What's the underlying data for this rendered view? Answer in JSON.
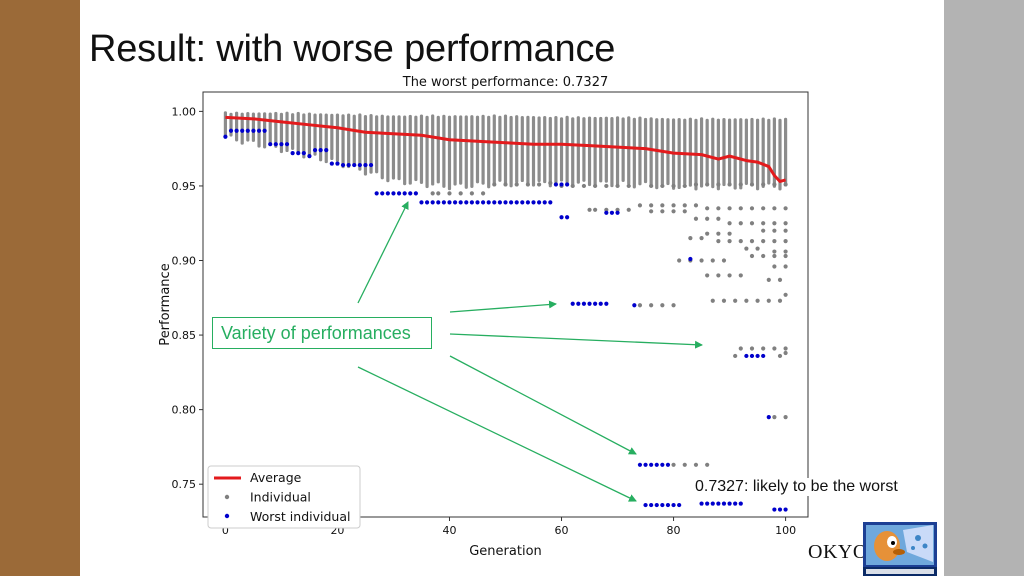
{
  "slide": {
    "title": "Result: with worse performance",
    "callout": "Variety of performances",
    "note": "0.7327: likely to be the worst",
    "footer_text": "OKYO"
  },
  "colors": {
    "left_bar": "#9b6a38",
    "right_bar": "#b3b3b3",
    "average": "#e31a1c",
    "individual": "#808080",
    "worst": "#0000cc",
    "annotation": "#27ae60"
  },
  "chart_data": {
    "type": "scatter",
    "title": "The worst performance: 0.7327",
    "xlabel": "Generation",
    "ylabel": "Performance",
    "xlim": [
      -4,
      104
    ],
    "ylim": [
      0.728,
      1.013
    ],
    "xticks": [
      "0",
      "20",
      "40",
      "60",
      "80",
      "100"
    ],
    "yticks": [
      "0.75",
      "0.80",
      "0.85",
      "0.90",
      "0.95",
      "1.00"
    ],
    "grid": false,
    "legend_position": "lower-left",
    "legend": [
      "Average",
      "Individual",
      "Worst individual"
    ],
    "series": [
      {
        "name": "Average",
        "kind": "line",
        "points": [
          [
            0,
            0.996
          ],
          [
            5,
            0.995
          ],
          [
            10,
            0.993
          ],
          [
            15,
            0.991
          ],
          [
            20,
            0.989
          ],
          [
            25,
            0.986
          ],
          [
            30,
            0.985
          ],
          [
            35,
            0.984
          ],
          [
            40,
            0.981
          ],
          [
            45,
            0.98
          ],
          [
            50,
            0.979
          ],
          [
            55,
            0.978
          ],
          [
            60,
            0.978
          ],
          [
            65,
            0.977
          ],
          [
            70,
            0.976
          ],
          [
            75,
            0.975
          ],
          [
            80,
            0.972
          ],
          [
            85,
            0.971
          ],
          [
            88,
            0.968
          ],
          [
            90,
            0.97
          ],
          [
            93,
            0.967
          ],
          [
            95,
            0.966
          ],
          [
            97,
            0.963
          ],
          [
            98,
            0.957
          ],
          [
            99,
            0.953
          ],
          [
            100,
            0.954
          ]
        ]
      },
      {
        "name": "Individual",
        "kind": "band",
        "points": [
          [
            0,
            0.983,
            0.999
          ],
          [
            10,
            0.975,
            0.999
          ],
          [
            20,
            0.966,
            0.998
          ],
          [
            30,
            0.954,
            0.997
          ],
          [
            40,
            0.95,
            0.997
          ],
          [
            50,
            0.952,
            0.997
          ],
          [
            60,
            0.952,
            0.996
          ],
          [
            70,
            0.952,
            0.996
          ],
          [
            80,
            0.95,
            0.995
          ],
          [
            90,
            0.95,
            0.995
          ],
          [
            100,
            0.95,
            0.995
          ]
        ]
      },
      {
        "name": "Individual",
        "kind": "scatter",
        "points": [
          [
            37,
            0.945
          ],
          [
            38,
            0.945
          ],
          [
            40,
            0.945
          ],
          [
            42,
            0.945
          ],
          [
            44,
            0.945
          ],
          [
            46,
            0.945
          ],
          [
            48,
            0.951
          ],
          [
            50,
            0.951
          ],
          [
            52,
            0.951
          ],
          [
            54,
            0.951
          ],
          [
            56,
            0.951
          ],
          [
            58,
            0.952
          ],
          [
            60,
            0.95
          ],
          [
            62,
            0.95
          ],
          [
            64,
            0.95
          ],
          [
            66,
            0.95
          ],
          [
            68,
            0.95
          ],
          [
            70,
            0.95
          ],
          [
            72,
            0.95
          ],
          [
            76,
            0.95
          ],
          [
            78,
            0.95
          ],
          [
            80,
            0.95
          ],
          [
            82,
            0.95
          ],
          [
            84,
            0.951
          ],
          [
            86,
            0.951
          ],
          [
            88,
            0.951
          ],
          [
            90,
            0.951
          ],
          [
            92,
            0.951
          ],
          [
            94,
            0.951
          ],
          [
            96,
            0.951
          ],
          [
            98,
            0.951
          ],
          [
            100,
            0.951
          ],
          [
            65,
            0.934
          ],
          [
            66,
            0.934
          ],
          [
            68,
            0.934
          ],
          [
            70,
            0.934
          ],
          [
            72,
            0.934
          ],
          [
            74,
            0.937
          ],
          [
            76,
            0.937
          ],
          [
            78,
            0.937
          ],
          [
            80,
            0.937
          ],
          [
            82,
            0.937
          ],
          [
            84,
            0.937
          ],
          [
            86,
            0.935
          ],
          [
            88,
            0.935
          ],
          [
            90,
            0.935
          ],
          [
            92,
            0.935
          ],
          [
            94,
            0.935
          ],
          [
            96,
            0.935
          ],
          [
            98,
            0.935
          ],
          [
            100,
            0.935
          ],
          [
            76,
            0.933
          ],
          [
            78,
            0.933
          ],
          [
            80,
            0.933
          ],
          [
            82,
            0.933
          ],
          [
            84,
            0.928
          ],
          [
            86,
            0.928
          ],
          [
            88,
            0.928
          ],
          [
            90,
            0.925
          ],
          [
            92,
            0.925
          ],
          [
            94,
            0.925
          ],
          [
            96,
            0.925
          ],
          [
            98,
            0.925
          ],
          [
            100,
            0.925
          ],
          [
            86,
            0.918
          ],
          [
            88,
            0.918
          ],
          [
            90,
            0.918
          ],
          [
            96,
            0.92
          ],
          [
            98,
            0.92
          ],
          [
            100,
            0.92
          ],
          [
            83,
            0.915
          ],
          [
            85,
            0.915
          ],
          [
            88,
            0.913
          ],
          [
            90,
            0.913
          ],
          [
            92,
            0.913
          ],
          [
            94,
            0.913
          ],
          [
            96,
            0.913
          ],
          [
            98,
            0.913
          ],
          [
            100,
            0.913
          ],
          [
            93,
            0.908
          ],
          [
            95,
            0.908
          ],
          [
            98,
            0.906
          ],
          [
            100,
            0.906
          ],
          [
            81,
            0.9
          ],
          [
            83,
            0.9
          ],
          [
            85,
            0.9
          ],
          [
            87,
            0.9
          ],
          [
            89,
            0.9
          ],
          [
            94,
            0.903
          ],
          [
            96,
            0.903
          ],
          [
            98,
            0.903
          ],
          [
            100,
            0.903
          ],
          [
            98,
            0.896
          ],
          [
            100,
            0.896
          ],
          [
            86,
            0.89
          ],
          [
            88,
            0.89
          ],
          [
            90,
            0.89
          ],
          [
            92,
            0.89
          ],
          [
            97,
            0.887
          ],
          [
            99,
            0.887
          ],
          [
            87,
            0.873
          ],
          [
            89,
            0.873
          ],
          [
            91,
            0.873
          ],
          [
            93,
            0.873
          ],
          [
            95,
            0.873
          ],
          [
            97,
            0.873
          ],
          [
            99,
            0.873
          ],
          [
            100,
            0.877
          ],
          [
            74,
            0.87
          ],
          [
            76,
            0.87
          ],
          [
            78,
            0.87
          ],
          [
            80,
            0.87
          ],
          [
            92,
            0.841
          ],
          [
            94,
            0.841
          ],
          [
            96,
            0.841
          ],
          [
            98,
            0.841
          ],
          [
            100,
            0.841
          ],
          [
            91,
            0.836
          ],
          [
            99,
            0.836
          ],
          [
            100,
            0.838
          ],
          [
            100,
            0.795
          ],
          [
            98,
            0.795
          ],
          [
            80,
            0.763
          ],
          [
            82,
            0.763
          ],
          [
            84,
            0.763
          ],
          [
            86,
            0.763
          ]
        ]
      },
      {
        "name": "Worst individual",
        "kind": "scatter",
        "points": [
          [
            0,
            0.983
          ],
          [
            1,
            0.987
          ],
          [
            2,
            0.987
          ],
          [
            3,
            0.987
          ],
          [
            4,
            0.987
          ],
          [
            5,
            0.987
          ],
          [
            6,
            0.987
          ],
          [
            7,
            0.987
          ],
          [
            8,
            0.978
          ],
          [
            9,
            0.978
          ],
          [
            10,
            0.978
          ],
          [
            11,
            0.978
          ],
          [
            12,
            0.972
          ],
          [
            13,
            0.972
          ],
          [
            14,
            0.972
          ],
          [
            15,
            0.97
          ],
          [
            16,
            0.974
          ],
          [
            17,
            0.974
          ],
          [
            18,
            0.974
          ],
          [
            19,
            0.965
          ],
          [
            20,
            0.965
          ],
          [
            21,
            0.964
          ],
          [
            22,
            0.964
          ],
          [
            23,
            0.964
          ],
          [
            24,
            0.964
          ],
          [
            25,
            0.964
          ],
          [
            26,
            0.964
          ],
          [
            27,
            0.945
          ],
          [
            28,
            0.945
          ],
          [
            29,
            0.945
          ],
          [
            30,
            0.945
          ],
          [
            31,
            0.945
          ],
          [
            32,
            0.945
          ],
          [
            33,
            0.945
          ],
          [
            34,
            0.945
          ],
          [
            35,
            0.939
          ],
          [
            36,
            0.939
          ],
          [
            37,
            0.939
          ],
          [
            38,
            0.939
          ],
          [
            39,
            0.939
          ],
          [
            40,
            0.939
          ],
          [
            41,
            0.939
          ],
          [
            42,
            0.939
          ],
          [
            43,
            0.939
          ],
          [
            44,
            0.939
          ],
          [
            45,
            0.939
          ],
          [
            46,
            0.939
          ],
          [
            47,
            0.939
          ],
          [
            48,
            0.939
          ],
          [
            49,
            0.939
          ],
          [
            50,
            0.939
          ],
          [
            51,
            0.939
          ],
          [
            52,
            0.939
          ],
          [
            53,
            0.939
          ],
          [
            54,
            0.939
          ],
          [
            55,
            0.939
          ],
          [
            56,
            0.939
          ],
          [
            57,
            0.939
          ],
          [
            58,
            0.939
          ],
          [
            59,
            0.951
          ],
          [
            60,
            0.951
          ],
          [
            61,
            0.951
          ],
          [
            60,
            0.929
          ],
          [
            61,
            0.929
          ],
          [
            68,
            0.932
          ],
          [
            69,
            0.932
          ],
          [
            70,
            0.932
          ],
          [
            62,
            0.871
          ],
          [
            63,
            0.871
          ],
          [
            64,
            0.871
          ],
          [
            65,
            0.871
          ],
          [
            66,
            0.871
          ],
          [
            67,
            0.871
          ],
          [
            68,
            0.871
          ],
          [
            73,
            0.87
          ],
          [
            74,
            0.763
          ],
          [
            75,
            0.763
          ],
          [
            76,
            0.763
          ],
          [
            77,
            0.763
          ],
          [
            78,
            0.763
          ],
          [
            79,
            0.763
          ],
          [
            83,
            0.901
          ],
          [
            93,
            0.836
          ],
          [
            94,
            0.836
          ],
          [
            95,
            0.836
          ],
          [
            96,
            0.836
          ],
          [
            97,
            0.795
          ],
          [
            75,
            0.736
          ],
          [
            76,
            0.736
          ],
          [
            77,
            0.736
          ],
          [
            78,
            0.736
          ],
          [
            79,
            0.736
          ],
          [
            80,
            0.736
          ],
          [
            81,
            0.736
          ],
          [
            85,
            0.737
          ],
          [
            86,
            0.737
          ],
          [
            87,
            0.737
          ],
          [
            88,
            0.737
          ],
          [
            89,
            0.737
          ],
          [
            90,
            0.737
          ],
          [
            91,
            0.737
          ],
          [
            92,
            0.737
          ],
          [
            98,
            0.733
          ],
          [
            99,
            0.733
          ],
          [
            100,
            0.733
          ]
        ]
      }
    ]
  }
}
